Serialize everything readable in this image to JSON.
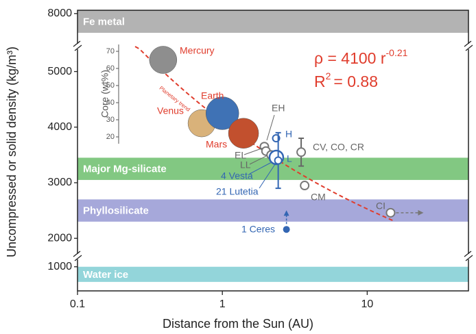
{
  "chart_data": {
    "type": "scatter",
    "x_label": "Distance from the Sun (AU)",
    "y_label": "Uncompressed or solid density (kg/m³)",
    "xlim": [
      0.1,
      50
    ],
    "log_x": true,
    "xticks": [
      0.1,
      1,
      10
    ],
    "y_segments": [
      {
        "ylim": [
          7400,
          8060
        ],
        "yticks": [
          8000
        ]
      },
      {
        "ylim": [
          1670,
          5450
        ],
        "yticks": [
          2000,
          3000,
          4000,
          5000
        ]
      },
      {
        "ylim": [
          570,
          1180
        ],
        "yticks": [
          1000
        ]
      }
    ],
    "bands": [
      {
        "name": "Fe metal",
        "range": [
          7650,
          8060
        ],
        "color": "#b3b3b3"
      },
      {
        "name": "Major Mg-silicate",
        "range": [
          3050,
          3450
        ],
        "color": "#82c882"
      },
      {
        "name": "Phyllosilicate",
        "range": [
          2300,
          2700
        ],
        "color": "#a6a8da"
      },
      {
        "name": "Water ice",
        "range": [
          730,
          1000
        ],
        "color": "#93d5da"
      }
    ],
    "points": [
      {
        "label": "Mercury",
        "x": 0.39,
        "y": 5210,
        "color": "#e03c2c",
        "fill": "#8e8e8e",
        "kind": "planet"
      },
      {
        "label": "Venus",
        "x": 0.72,
        "y": 4070,
        "color": "#e03c2c",
        "fill": "#d9b27a",
        "kind": "planet"
      },
      {
        "label": "Earth",
        "x": 1.0,
        "y": 4250,
        "color": "#e03c2c",
        "fill": "#3f72b5",
        "kind": "planet"
      },
      {
        "label": "Mars",
        "x": 1.4,
        "y": 3890,
        "color": "#e03c2c",
        "fill": "#c2502e",
        "kind": "planet"
      },
      {
        "label": "EH",
        "x": 1.95,
        "y": 3650,
        "color": "#666666",
        "kind": "meteorite"
      },
      {
        "label": "EL",
        "x": 2.0,
        "y": 3570,
        "color": "#666666",
        "kind": "meteorite"
      },
      {
        "label": "LL",
        "x": 2.17,
        "y": 3500,
        "color": "#666666",
        "kind": "meteorite"
      },
      {
        "label": "H",
        "x": 2.35,
        "y": 3800,
        "color": "#3366b3",
        "kind": "small"
      },
      {
        "label": "L",
        "x": 2.45,
        "y": 3500,
        "color": "#3366b3",
        "kind": "small"
      },
      {
        "label": "4 Vesta",
        "x": 2.36,
        "y": 3456,
        "color": "#3366b3",
        "kind": "vesta"
      },
      {
        "label": "21 Lutetia",
        "x": 2.43,
        "y": 3400,
        "err": 500,
        "color": "#3366b3",
        "kind": "small"
      },
      {
        "label": "CV, CO, CR",
        "x": 3.5,
        "y": 3550,
        "err": 250,
        "color": "#666666",
        "kind": "meteorite"
      },
      {
        "label": "CM",
        "x": 3.7,
        "y": 2950,
        "color": "#666666",
        "kind": "meteorite"
      },
      {
        "label": "CI",
        "x": 14.5,
        "y": 2460,
        "color": "#666666",
        "kind": "meteorite"
      },
      {
        "label": "1 Ceres",
        "x": 2.77,
        "y": 2160,
        "color": "#3366b3",
        "kind": "ceres"
      }
    ],
    "fit": {
      "a": 4100,
      "b": -0.21,
      "x_range": [
        0.25,
        15
      ],
      "color": "#e03c2c",
      "label": "ρ = 4100 r",
      "exponent": "-0.21"
    },
    "r2": {
      "label": "R",
      "sup": "2",
      "value_text": "= 0.88"
    },
    "inset": {
      "y_label": "Core (wt%)",
      "ylim": [
        16,
        74
      ],
      "yticks": [
        20,
        30,
        40,
        50,
        60,
        70
      ],
      "trend_label": "Planetary trend"
    }
  }
}
